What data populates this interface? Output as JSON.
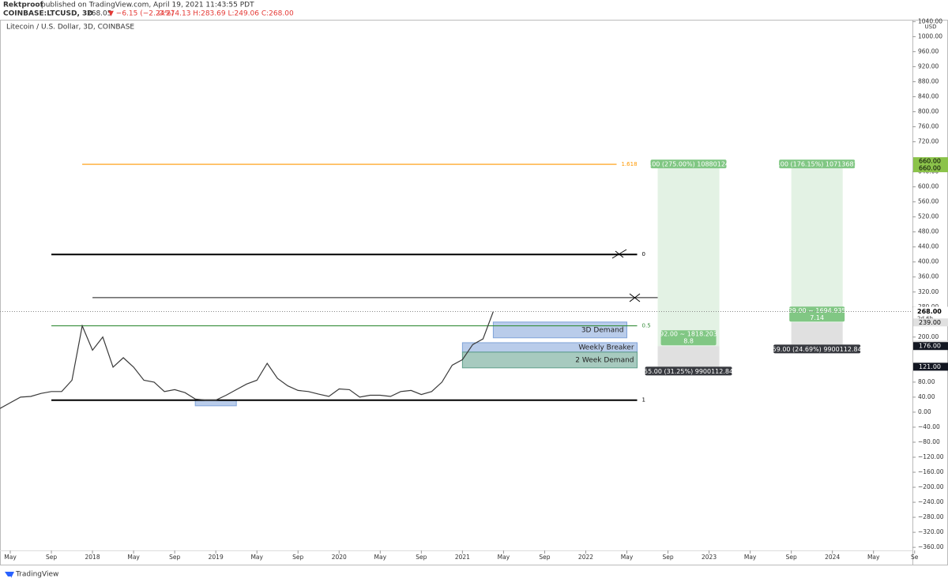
{
  "header": {
    "publisher": "Rektproof",
    "published": "published on TradingView.com, April 19, 2021 11:43:55 PDT",
    "symbol": "COINBASE:LTCUSD, 3D",
    "last": "268.05",
    "change": "▼ −6.15 (−2.24%)",
    "ohlc": "O:274.13 H:283.69 L:249.06 C:268.00"
  },
  "footer": "TradingView",
  "chart_data": {
    "type": "line",
    "title": "Litecoin / U.S. Dollar, 3D, COINBASE",
    "y_unit": "USD",
    "color": "#3a3a3a",
    "x": [
      "2017-04",
      "2017-05",
      "2017-06",
      "2017-07",
      "2017-08",
      "2017-09",
      "2017-10",
      "2017-11",
      "2017-12",
      "2018-01",
      "2018-02",
      "2018-03",
      "2018-04",
      "2018-05",
      "2018-06",
      "2018-07",
      "2018-08",
      "2018-09",
      "2018-10",
      "2018-11",
      "2018-12",
      "2019-01",
      "2019-02",
      "2019-03",
      "2019-04",
      "2019-05",
      "2019-06",
      "2019-07",
      "2019-08",
      "2019-09",
      "2019-10",
      "2019-11",
      "2019-12",
      "2020-01",
      "2020-02",
      "2020-03",
      "2020-04",
      "2020-05",
      "2020-06",
      "2020-07",
      "2020-08",
      "2020-09",
      "2020-10",
      "2020-11",
      "2020-12",
      "2021-01",
      "2021-02",
      "2021-03",
      "2021-04"
    ],
    "values": [
      10,
      25,
      40,
      42,
      50,
      55,
      55,
      85,
      230,
      165,
      200,
      120,
      145,
      120,
      85,
      80,
      55,
      60,
      52,
      35,
      32,
      32,
      45,
      60,
      75,
      85,
      130,
      90,
      70,
      58,
      55,
      48,
      42,
      62,
      60,
      40,
      45,
      45,
      42,
      55,
      58,
      47,
      55,
      80,
      125,
      140,
      180,
      195,
      268
    ],
    "xlim": [
      "2017-04-01",
      "2024-08-25"
    ],
    "ylim": [
      -406,
      1045
    ],
    "xticks": [
      {
        "value": "2017-05",
        "label": "May"
      },
      {
        "value": "2017-09",
        "label": "Sep"
      },
      {
        "value": "2018-01",
        "label": "2018"
      },
      {
        "value": "2018-05",
        "label": "May"
      },
      {
        "value": "2018-09",
        "label": "Sep"
      },
      {
        "value": "2019-01",
        "label": "2019"
      },
      {
        "value": "2019-05",
        "label": "May"
      },
      {
        "value": "2019-09",
        "label": "Sep"
      },
      {
        "value": "2020-01",
        "label": "2020"
      },
      {
        "value": "2020-05",
        "label": "May"
      },
      {
        "value": "2020-09",
        "label": "Sep"
      },
      {
        "value": "2021-01",
        "label": "2021"
      },
      {
        "value": "2021-05",
        "label": "May"
      },
      {
        "value": "2021-09",
        "label": "Sep"
      },
      {
        "value": "2022-01",
        "label": "2022"
      },
      {
        "value": "2022-05",
        "label": "May"
      },
      {
        "value": "2022-09",
        "label": "Sep"
      },
      {
        "value": "2023-01",
        "label": "2023"
      },
      {
        "value": "2023-05",
        "label": "May"
      },
      {
        "value": "2023-09",
        "label": "Sep"
      },
      {
        "value": "2024-01",
        "label": "2024"
      },
      {
        "value": "2024-05",
        "label": "May"
      },
      {
        "value": "2024-09",
        "label": "Se"
      }
    ],
    "yticks": [
      {
        "value": 1040,
        "label": "1040.00"
      },
      {
        "value": 1000,
        "label": "1000.00"
      },
      {
        "value": 960,
        "label": "960.00"
      },
      {
        "value": 920,
        "label": "920.00"
      },
      {
        "value": 880,
        "label": "880.00"
      },
      {
        "value": 840,
        "label": "840.00"
      },
      {
        "value": 800,
        "label": "800.00"
      },
      {
        "value": 760,
        "label": "760.00"
      },
      {
        "value": 720,
        "label": "720.00"
      },
      {
        "value": 640,
        "label": "640.00"
      },
      {
        "value": 600,
        "label": "600.00"
      },
      {
        "value": 560,
        "label": "560.00"
      },
      {
        "value": 520,
        "label": "520.00"
      },
      {
        "value": 480,
        "label": "480.00"
      },
      {
        "value": 440,
        "label": "440.00"
      },
      {
        "value": 400,
        "label": "400.00"
      },
      {
        "value": 360,
        "label": "360.00"
      },
      {
        "value": 320,
        "label": "320.00"
      },
      {
        "value": 280,
        "label": "280.00"
      },
      {
        "value": 200,
        "label": "200.00"
      },
      {
        "value": 80,
        "label": "80.00"
      },
      {
        "value": 40,
        "label": "40.00"
      },
      {
        "value": 0,
        "label": "0.00"
      },
      {
        "value": -40,
        "label": "−40.00"
      },
      {
        "value": -80,
        "label": "−80.00"
      },
      {
        "value": -120,
        "label": "−120.00"
      },
      {
        "value": -160,
        "label": "−160.00"
      },
      {
        "value": -200,
        "label": "−200.00"
      },
      {
        "value": -240,
        "label": "−240.00"
      },
      {
        "value": -280,
        "label": "−280.00"
      },
      {
        "value": -320,
        "label": "−320.00"
      },
      {
        "value": -360,
        "label": "−360.00"
      }
    ],
    "levels": [
      {
        "value": 660,
        "label": "1.618",
        "color": "#ff9800",
        "from": "2017-12",
        "to": "2022-04"
      },
      {
        "value": 420,
        "label": "0",
        "color": "#000000",
        "from": "2017-09",
        "to": "2022-06"
      },
      {
        "value": 305,
        "color": "#444444",
        "from": "2018-01",
        "to": "2022-08"
      },
      {
        "value": 230,
        "label": "0.5",
        "color": "#388e3c",
        "from": "2017-09",
        "to": "2022-06"
      },
      {
        "value": 32,
        "label": "1",
        "color": "#000000",
        "from": "2017-09",
        "to": "2022-06"
      }
    ],
    "zones": [
      {
        "label": "3D Demand",
        "top": 240,
        "bottom": 198,
        "from": "2021-04",
        "to": "2022-05",
        "color": "#7fa3d9"
      },
      {
        "label": "Weekly Breaker",
        "top": 185,
        "bottom": 160,
        "from": "2021-01",
        "to": "2022-06",
        "color": "#7fa3d9"
      },
      {
        "label": "2 Week Demand",
        "top": 160,
        "bottom": 118,
        "from": "2021-01",
        "to": "2022-06",
        "color": "#5f9e8a"
      },
      {
        "top": 32,
        "bottom": 17,
        "from": "2018-11",
        "to": "2019-03",
        "color": "#7fa3d9"
      }
    ],
    "positions": [
      {
        "from": "2022-08",
        "to": "2023-02",
        "target": 660,
        "entry": 176,
        "stop": 121,
        "target_label": "484.00 (275.00%) 10880124.25",
        "entry_label": "92.00 ~ 1818.203",
        "entry_qty": "8.8",
        "stop_label": "55.00 (31.25%) 9900112.84"
      },
      {
        "from": "2023-09",
        "to": "2024-02",
        "target": 660,
        "entry": 239,
        "stop": 180,
        "target_label": "421.00 (176.15%) 10713681.63",
        "entry_label": "29.00 ~ 1694.935",
        "entry_qty": "7.14",
        "stop_label": "59.00 (24.69%) 9900112.84"
      }
    ],
    "price_labels": [
      {
        "value": 660,
        "label": "660.00",
        "color": "#8bc34a"
      },
      {
        "value": 239,
        "label": "239.00",
        "color": "#e0e0e0"
      },
      {
        "value": 180,
        "label": "180.00",
        "color": "#e0e0e0"
      },
      {
        "value": 176,
        "label": "176.00",
        "color": "#131722"
      },
      {
        "value": 121,
        "label": "121.00",
        "color": "#131722"
      }
    ],
    "last_price": {
      "value": 268,
      "label": "268.00",
      "countdown": "2d 6h"
    }
  }
}
